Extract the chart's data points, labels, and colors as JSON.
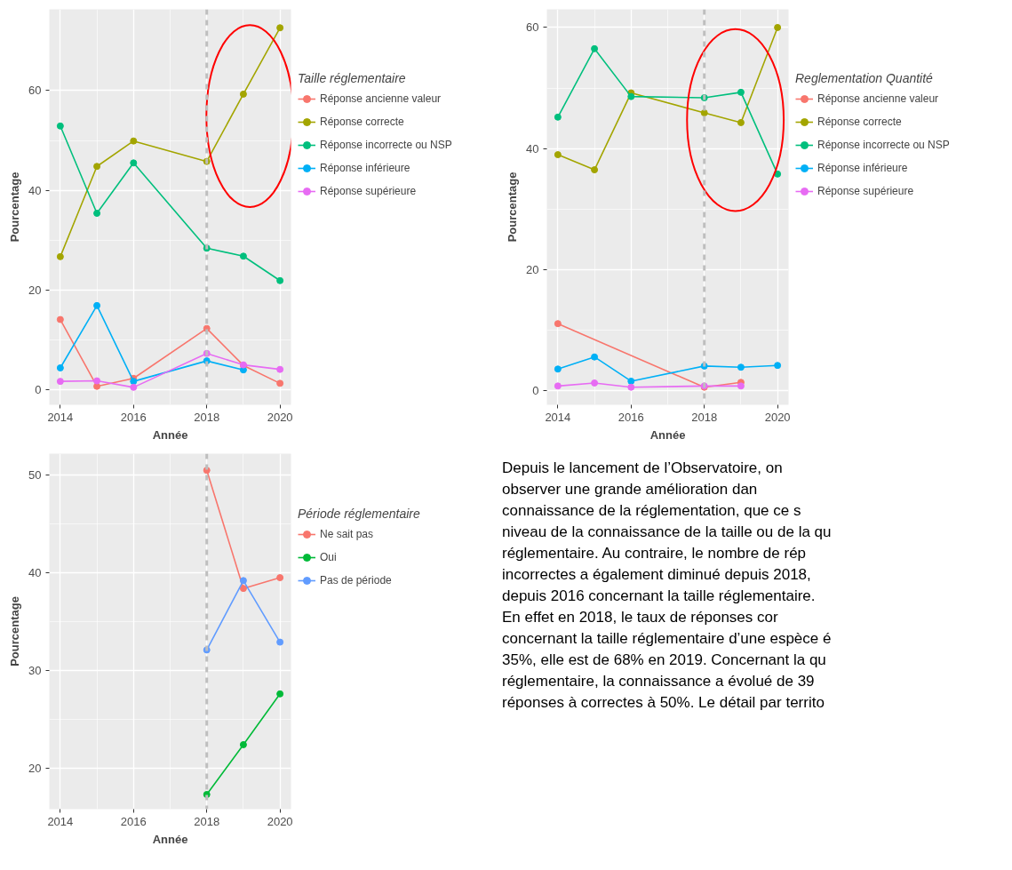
{
  "chart_data": [
    {
      "type": "line",
      "xlabel": "Année",
      "ylabel": "Pourcentage",
      "legend_title": "Taille réglementaire",
      "x": [
        2014,
        2015,
        2016,
        2018,
        2019,
        2020
      ],
      "xlim": [
        2013.7,
        2020.3
      ],
      "xticks": [
        2014,
        2016,
        2018,
        2020
      ],
      "ylim": [
        -3,
        76.3
      ],
      "yticks": [
        0,
        20,
        40,
        60
      ],
      "grid": true,
      "legend": "right",
      "marker": "circle",
      "line_style": "solid",
      "ref_lines": [
        {
          "axis": "x",
          "value": 2018,
          "label": null,
          "color": "#bebebe",
          "line_style": "dashed"
        }
      ],
      "series": [
        {
          "name": "Réponse ancienne valeur",
          "color": "#f8766d",
          "values": [
            14.1,
            0.7,
            2.3,
            12.3,
            4.9,
            1.3
          ]
        },
        {
          "name": "Réponse correcte",
          "color": "#a3a500",
          "values": [
            26.7,
            44.8,
            49.9,
            45.8,
            59.3,
            72.6
          ]
        },
        {
          "name": "Réponse incorrecte ou NSP",
          "color": "#00bf7d",
          "values": [
            52.9,
            35.4,
            45.5,
            28.4,
            26.8,
            21.9
          ]
        },
        {
          "name": "Réponse inférieure",
          "color": "#00b0f6",
          "values": [
            4.4,
            16.9,
            1.7,
            5.8,
            4.0,
            null
          ]
        },
        {
          "name": "Réponse supérieure",
          "color": "#e76bf3",
          "values": [
            1.7,
            1.8,
            0.5,
            7.3,
            5.0,
            4.1
          ]
        }
      ]
    },
    {
      "type": "line",
      "xlabel": "Année",
      "ylabel": "Pourcentage",
      "legend_title": "Reglementation Quantité",
      "x": [
        2014,
        2015,
        2016,
        2018,
        2019,
        2020
      ],
      "xlim": [
        2013.7,
        2020.3
      ],
      "xticks": [
        2014,
        2016,
        2018,
        2020
      ],
      "ylim": [
        -2.3,
        63
      ],
      "yticks": [
        0,
        20,
        40,
        60
      ],
      "grid": true,
      "legend": "right",
      "marker": "circle",
      "line_style": "solid",
      "ref_lines": [
        {
          "axis": "x",
          "value": 2018,
          "label": null,
          "color": "#bebebe",
          "line_style": "dashed"
        }
      ],
      "series": [
        {
          "name": "Réponse ancienne valeur",
          "color": "#f8766d",
          "values": [
            11.1,
            null,
            null,
            0.6,
            1.4,
            null
          ]
        },
        {
          "name": "Réponse correcte",
          "color": "#a3a500",
          "values": [
            39.0,
            36.5,
            49.2,
            45.9,
            44.3,
            60.0
          ]
        },
        {
          "name": "Réponse incorrecte ou NSP",
          "color": "#00bf7d",
          "values": [
            45.2,
            56.5,
            48.6,
            48.4,
            49.3,
            35.8
          ]
        },
        {
          "name": "Réponse inférieure",
          "color": "#00b0f6",
          "values": [
            3.6,
            5.6,
            1.6,
            4.1,
            3.9,
            4.2
          ]
        },
        {
          "name": "Réponse supérieure",
          "color": "#e76bf3",
          "values": [
            0.8,
            1.3,
            0.6,
            0.8,
            0.8,
            null
          ]
        }
      ]
    },
    {
      "type": "line",
      "xlabel": "Année",
      "ylabel": "Pourcentage",
      "legend_title": "Période réglementaire",
      "x": [
        2018,
        2019,
        2020
      ],
      "xlim": [
        2013.7,
        2020.3
      ],
      "xticks": [
        2014,
        2016,
        2018,
        2020
      ],
      "ylim": [
        15.8,
        52.2
      ],
      "yticks": [
        20,
        30,
        40,
        50
      ],
      "grid": true,
      "legend": "right",
      "marker": "circle",
      "line_style": "solid",
      "ref_lines": [
        {
          "axis": "x",
          "value": 2018,
          "label": null,
          "color": "#bebebe",
          "line_style": "dashed"
        }
      ],
      "series": [
        {
          "name": "Ne sait pas",
          "color": "#f8766d",
          "values": [
            50.5,
            38.4,
            39.5
          ]
        },
        {
          "name": "Oui",
          "color": "#00ba38",
          "values": [
            17.3,
            22.4,
            27.6
          ]
        },
        {
          "name": "Pas de période",
          "color": "#619cff",
          "values": [
            32.1,
            39.2,
            32.9
          ]
        }
      ]
    },
    {
      "type": "other",
      "annotations": [
        "Depuis le lancement de l’Observatoire, on",
        "observer une grande amélioration dan",
        "connaissance de la réglementation, que ce s",
        "niveau de la connaissance de la taille ou de la qu",
        "réglementaire. Au contraire, le nombre de rép",
        "incorrectes a également diminué depuis 2018,",
        "depuis 2016 concernant la taille réglementaire.",
        "En effet en 2018, le taux de réponses cor",
        "concernant la taille réglementaire d’une espèce é",
        "35%, elle est de 68% en 2019. Concernant la qu",
        "réglementaire, la connaissance a évolué de 39",
        "réponses à correctes à 50%. Le détail par territo"
      ]
    }
  ]
}
